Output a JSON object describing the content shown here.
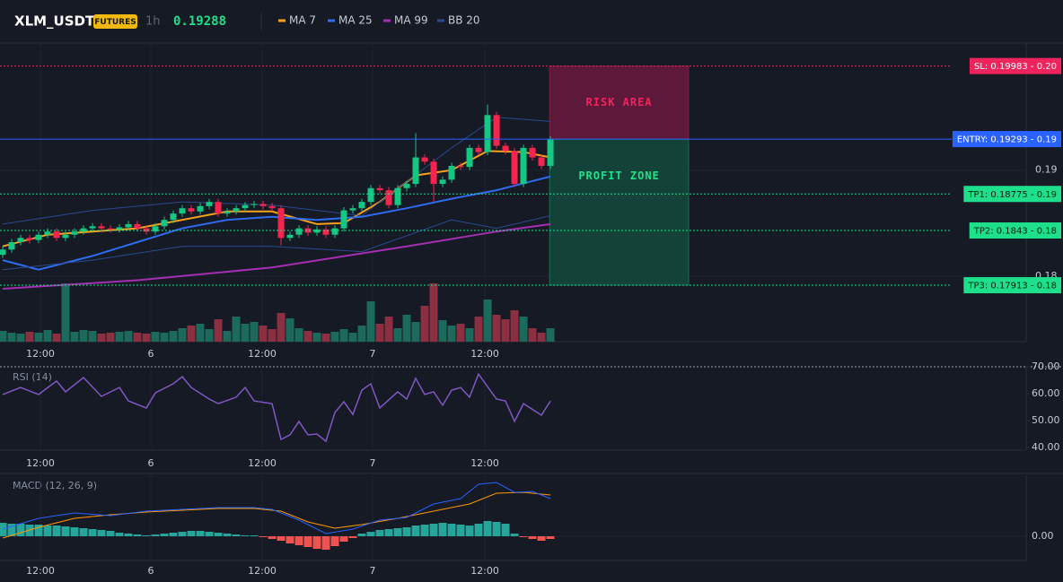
{
  "header": {
    "symbol": "XLM_USDT",
    "badge": "FUTURES",
    "interval": "1h",
    "price": "0.19288"
  },
  "chart_data": [
    {
      "type": "candlestick",
      "xlim": [
        -0.3,
        113.99
      ],
      "xticks": [
        {
          "value": 4.2,
          "label": "12:00"
        },
        {
          "value": 16.5,
          "label": "6"
        },
        {
          "value": 28.9,
          "label": "12:00"
        },
        {
          "value": 41.2,
          "label": "7"
        },
        {
          "value": 53.7,
          "label": "12:00"
        }
      ],
      "ylim": [
        0.1738,
        0.202
      ],
      "yticks": [
        0.19,
        0.18
      ],
      "grid": true,
      "up_color": "#16c784",
      "down_color": "#f6254f",
      "open": [
        0.182,
        0.1825,
        0.1832,
        0.1836,
        0.1834,
        0.1839,
        0.1842,
        0.1836,
        0.1839,
        0.1842,
        0.1845,
        0.1847,
        0.1845,
        0.1844,
        0.1846,
        0.1849,
        0.1845,
        0.1842,
        0.1847,
        0.1853,
        0.1859,
        0.1864,
        0.1861,
        0.1866,
        0.187,
        0.1859,
        0.1861,
        0.1864,
        0.1867,
        0.1868,
        0.1866,
        0.1864,
        0.1836,
        0.1839,
        0.1845,
        0.1841,
        0.1844,
        0.1839,
        0.1845,
        0.1862,
        0.1864,
        0.187,
        0.1883,
        0.1881,
        0.1867,
        0.1883,
        0.1887,
        0.1912,
        0.1908,
        0.1887,
        0.1891,
        0.1904,
        0.1903,
        0.1921,
        0.1917,
        0.1952,
        0.1923,
        0.1918,
        0.1887,
        0.1921,
        0.1912,
        0.1904
      ],
      "high": [
        0.1828,
        0.1835,
        0.1839,
        0.1839,
        0.1842,
        0.1845,
        0.1845,
        0.1842,
        0.1845,
        0.1848,
        0.185,
        0.185,
        0.1848,
        0.1849,
        0.1852,
        0.1852,
        0.1848,
        0.185,
        0.1856,
        0.1862,
        0.1867,
        0.1867,
        0.1869,
        0.1873,
        0.1873,
        0.1864,
        0.1867,
        0.187,
        0.1871,
        0.1871,
        0.1869,
        0.1867,
        0.1842,
        0.1848,
        0.1848,
        0.1847,
        0.1847,
        0.1848,
        0.1865,
        0.1867,
        0.1873,
        0.1886,
        0.1886,
        0.1884,
        0.1886,
        0.189,
        0.1935,
        0.1915,
        0.1911,
        0.1894,
        0.1907,
        0.1907,
        0.1924,
        0.1924,
        0.1962,
        0.1955,
        0.1926,
        0.1921,
        0.1924,
        0.1924,
        0.1915,
        0.1932
      ],
      "low": [
        0.1817,
        0.1822,
        0.1829,
        0.1831,
        0.1831,
        0.1836,
        0.1833,
        0.1833,
        0.1836,
        0.1839,
        0.1842,
        0.1842,
        0.1841,
        0.1841,
        0.1843,
        0.1842,
        0.1839,
        0.1839,
        0.1844,
        0.185,
        0.1856,
        0.1858,
        0.1858,
        0.1863,
        0.1856,
        0.1856,
        0.1858,
        0.1861,
        0.1864,
        0.1863,
        0.1861,
        0.1829,
        0.1833,
        0.1836,
        0.1838,
        0.1838,
        0.1836,
        0.1836,
        0.1842,
        0.1859,
        0.1861,
        0.1867,
        0.1878,
        0.1864,
        0.1864,
        0.188,
        0.1884,
        0.1905,
        0.187,
        0.1884,
        0.1888,
        0.19,
        0.19,
        0.1914,
        0.1914,
        0.192,
        0.1915,
        0.1884,
        0.1884,
        0.1909,
        0.1901,
        0.1901
      ],
      "close": [
        0.1825,
        0.1832,
        0.1836,
        0.1834,
        0.1839,
        0.1842,
        0.1836,
        0.1839,
        0.1842,
        0.1845,
        0.1847,
        0.1845,
        0.1844,
        0.1846,
        0.1849,
        0.1845,
        0.1842,
        0.1847,
        0.1853,
        0.1859,
        0.1864,
        0.1861,
        0.1866,
        0.187,
        0.1859,
        0.1861,
        0.1864,
        0.1867,
        0.1868,
        0.1866,
        0.1864,
        0.1836,
        0.1839,
        0.1845,
        0.1841,
        0.1844,
        0.1839,
        0.1845,
        0.1862,
        0.1864,
        0.187,
        0.1883,
        0.1881,
        0.1867,
        0.1883,
        0.1887,
        0.1912,
        0.1908,
        0.1887,
        0.1891,
        0.1904,
        0.1903,
        0.1921,
        0.1917,
        0.1952,
        0.1923,
        0.1918,
        0.1887,
        0.1921,
        0.1912,
        0.1904,
        0.1929
      ],
      "volume": {
        "ylim": [
          0,
          100
        ],
        "up_color": "#1b6a5c",
        "down_color": "#8c2f40",
        "values": [
          12,
          10,
          9,
          11,
          10,
          13,
          9,
          65,
          11,
          13,
          12,
          9,
          10,
          11,
          12,
          10,
          9,
          11,
          10,
          12,
          15,
          18,
          20,
          14,
          25,
          12,
          28,
          20,
          22,
          18,
          14,
          32,
          26,
          15,
          12,
          10,
          9,
          11,
          14,
          10,
          18,
          45,
          20,
          28,
          15,
          30,
          22,
          40,
          65,
          24,
          18,
          20,
          15,
          28,
          47,
          30,
          25,
          35,
          28,
          15,
          10,
          15
        ]
      },
      "series": [
        {
          "name": "MA 7",
          "color": "#f7a21b",
          "x": [
            0,
            5,
            10,
            15,
            20,
            25,
            30,
            35,
            38,
            42,
            46,
            50,
            54,
            58,
            61
          ],
          "values": [
            0.1828,
            0.1839,
            0.1842,
            0.1845,
            0.1853,
            0.1861,
            0.1861,
            0.1849,
            0.185,
            0.187,
            0.1895,
            0.19,
            0.1918,
            0.1917,
            0.1912
          ]
        },
        {
          "name": "MA 25",
          "color": "#2f6bf0",
          "x": [
            0,
            4,
            10,
            15,
            20,
            25,
            30,
            35,
            40,
            45,
            50,
            55,
            61
          ],
          "values": [
            0.1815,
            0.1806,
            0.1819,
            0.1832,
            0.1845,
            0.1853,
            0.1856,
            0.1853,
            0.1856,
            0.1864,
            0.1873,
            0.1881,
            0.1894
          ]
        },
        {
          "name": "MA 99",
          "color": "#a42fb0",
          "x": [
            0,
            15,
            30,
            45,
            55,
            61
          ],
          "values": [
            0.1788,
            0.1796,
            0.1808,
            0.1828,
            0.1842,
            0.1849
          ]
        },
        {
          "name": "BB 20",
          "color": "#2a4a8f",
          "x": [
            0,
            10,
            20,
            30,
            40,
            50,
            55,
            61
          ],
          "values": [
            0.1849,
            0.1862,
            0.187,
            0.1867,
            0.1857,
            0.1921,
            0.195,
            0.1946
          ],
          "lower": [
            0.1806,
            0.1815,
            0.1828,
            0.1828,
            0.1823,
            0.1853,
            0.1845,
            0.1857
          ]
        }
      ],
      "zones": [
        {
          "label": "RISK AREA",
          "xlim": [
            60.9,
            76.4
          ],
          "ylim": [
            0.19293,
            0.19983
          ],
          "color": "#6b1a3e",
          "text_color": "#f0245c"
        },
        {
          "label": "PROFIT ZONE",
          "xlim": [
            60.9,
            76.4
          ],
          "ylim": [
            0.17913,
            0.19293
          ],
          "color": "#124a3c",
          "text_color": "#1fe08a"
        }
      ],
      "levels": [
        {
          "label": "SL: 0.19983 - 0.20",
          "value": 0.19983,
          "color": "#f0245c",
          "text_color": "#ffffff",
          "style": "dotted"
        },
        {
          "label": "ENTRY: 0.19293 - 0.19",
          "value": 0.19293,
          "color": "#2962ff",
          "text_color": "#ffffff",
          "style": "solid"
        },
        {
          "label": "TP1: 0.18775 - 0.19",
          "value": 0.18775,
          "color": "#1fe08a",
          "text_color": "#0b1a12",
          "style": "dotted"
        },
        {
          "label": "TP2: 0.1843 - 0.18",
          "value": 0.1843,
          "color": "#1fe08a",
          "text_color": "#0b1a12",
          "style": "dotted"
        },
        {
          "label": "TP3: 0.17913 - 0.18",
          "value": 0.17913,
          "color": "#1fe08a",
          "text_color": "#0b1a12",
          "style": "dotted"
        }
      ]
    },
    {
      "type": "line",
      "title": "RSI (14)",
      "color": "#7e57c2",
      "x": [
        0,
        2,
        4,
        6,
        7,
        9,
        11,
        13,
        14,
        16,
        17,
        19,
        20,
        21,
        23,
        24,
        26,
        27,
        28,
        30,
        31,
        32,
        33,
        34,
        35,
        36,
        37,
        38,
        39,
        40,
        41,
        42,
        44,
        45,
        46,
        47,
        48,
        49,
        50,
        51,
        52,
        53,
        55,
        56,
        57,
        58,
        60,
        61
      ],
      "values": [
        59.7,
        62.3,
        59.7,
        64.7,
        60.7,
        66.0,
        59.0,
        62.3,
        57.3,
        54.7,
        60.3,
        63.7,
        66.3,
        62.3,
        58.0,
        56.3,
        58.7,
        62.3,
        57.3,
        56.3,
        43.0,
        44.7,
        49.7,
        44.7,
        45.0,
        42.3,
        53.0,
        57.0,
        52.3,
        61.3,
        63.7,
        54.7,
        60.7,
        58.0,
        65.7,
        59.7,
        60.7,
        55.7,
        61.3,
        62.3,
        58.7,
        67.3,
        58.0,
        57.3,
        49.7,
        56.3,
        52.0,
        57.3
      ],
      "ylim": [
        39,
        70
      ],
      "yticks": [
        {
          "value": 70,
          "label": "70.00"
        },
        {
          "value": 60,
          "label": "60.00"
        },
        {
          "value": 50,
          "label": "50.00"
        },
        {
          "value": 40,
          "label": "40.00"
        }
      ]
    },
    {
      "type": "macd",
      "title": "MACD (12, 26, 9)",
      "ylim": [
        -0.00027,
        0.00068
      ],
      "yticks": [
        {
          "value": 0,
          "label": "0.00"
        }
      ],
      "macd": {
        "color": "#2962ff",
        "x": [
          0,
          4,
          8,
          12,
          16,
          20,
          24,
          28,
          30,
          33,
          36,
          39,
          42,
          45,
          48,
          51,
          53,
          55,
          57,
          59,
          61
        ],
        "values": [
          8e-05,
          0.0002,
          0.00026,
          0.00023,
          0.00028,
          0.0003,
          0.00032,
          0.00032,
          0.0003,
          0.00018,
          3e-05,
          8e-05,
          0.00018,
          0.00021,
          0.00036,
          0.00042,
          0.00058,
          0.0006,
          0.00049,
          0.0005,
          0.00042
        ]
      },
      "signal": {
        "color": "#ff9800",
        "x": [
          0,
          4,
          8,
          12,
          16,
          20,
          24,
          28,
          31,
          34,
          37,
          40,
          44,
          48,
          52,
          55,
          58,
          61
        ],
        "values": [
          -2e-05,
          0.0001,
          0.0002,
          0.00024,
          0.00027,
          0.00029,
          0.00031,
          0.00031,
          0.00028,
          0.00016,
          9e-05,
          0.00013,
          0.0002,
          0.00028,
          0.00036,
          0.00048,
          0.00049,
          0.00046
        ]
      },
      "histogram": {
        "up_color": "#26a69a",
        "down_color": "#ef5350",
        "values": [
          0.00015,
          0.00014,
          0.00014,
          0.00013,
          0.00013,
          0.00012,
          0.00012,
          0.00011,
          0.0001,
          9e-05,
          8e-05,
          7e-05,
          6e-05,
          4e-05,
          3e-05,
          2e-05,
          1e-05,
          2e-05,
          3e-05,
          4e-05,
          5e-05,
          6e-05,
          6e-05,
          5e-05,
          4e-05,
          3e-05,
          2e-05,
          1e-05,
          1e-05,
          -1e-05,
          -3e-05,
          -5e-05,
          -8e-05,
          -0.0001,
          -0.00012,
          -0.00014,
          -0.00015,
          -0.00011,
          -6e-05,
          -2e-05,
          3e-05,
          5e-05,
          7e-05,
          8e-05,
          9e-05,
          0.0001,
          0.00012,
          0.00013,
          0.00014,
          0.00015,
          0.00014,
          0.00013,
          0.00012,
          0.00014,
          0.00017,
          0.00016,
          0.00014,
          3e-05,
          -1e-05,
          -3e-05,
          -5e-05,
          -3e-05
        ]
      }
    }
  ]
}
